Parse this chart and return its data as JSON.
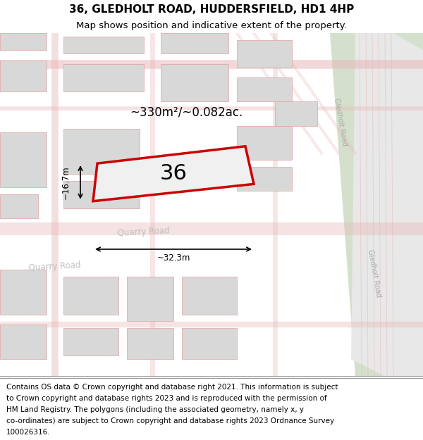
{
  "title": "36, GLEDHOLT ROAD, HUDDERSFIELD, HD1 4HP",
  "subtitle": "Map shows position and indicative extent of the property.",
  "footer_lines": [
    "Contains OS data © Crown copyright and database right 2021. This information is subject",
    "to Crown copyright and database rights 2023 and is reproduced with the permission of",
    "HM Land Registry. The polygons (including the associated geometry, namely x, y",
    "co-ordinates) are subject to Crown copyright and database rights 2023 Ordnance Survey",
    "100026316."
  ],
  "area_label": "~330m²/~0.082ac.",
  "number_label": "36",
  "width_label": "~32.3m",
  "height_label": "~16.7m",
  "map_bg": "#f0f0f0",
  "road_color": "#e8b8b8",
  "building_color": "#d8d8d8",
  "building_outline": "#e0a0a0",
  "highlight_color": "#cc0000",
  "green_color": "#d4e0cc",
  "road_strip_color": "#e8e8e8",
  "title_fontsize": 11,
  "subtitle_fontsize": 9.5,
  "footer_fontsize": 7.5,
  "figsize": [
    6.0,
    6.25
  ],
  "dpi": 100
}
